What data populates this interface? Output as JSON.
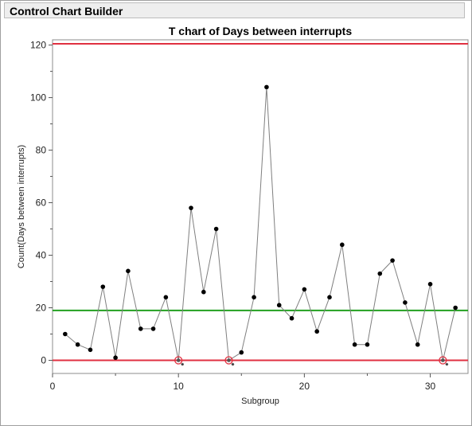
{
  "window": {
    "title": "Control Chart Builder"
  },
  "chart_data": {
    "type": "line",
    "title": "T chart of Days between interrupts",
    "xlabel": "Subgroup",
    "ylabel": "Count(Days between interrupts)",
    "xlim": [
      0,
      33
    ],
    "ylim": [
      -5,
      122
    ],
    "x_ticks": [
      0,
      10,
      20,
      30
    ],
    "y_ticks": [
      0,
      20,
      40,
      60,
      80,
      100,
      120
    ],
    "grid": false,
    "colors": {
      "series": "#7f7f7f",
      "points": "#000000",
      "ucl": "#e03040",
      "center": "#22a020",
      "lcl": "#e03040",
      "flag": "#e03040"
    },
    "series": [
      {
        "x": [
          1,
          2,
          3,
          4,
          5,
          6,
          7,
          8,
          9,
          10,
          11,
          12,
          13,
          14,
          15,
          16,
          17,
          18,
          19,
          20,
          21,
          22,
          23,
          24,
          25,
          26,
          27,
          28,
          29,
          30,
          31,
          32
        ],
        "values": [
          10,
          6,
          4,
          28,
          1,
          34,
          12,
          12,
          24,
          0,
          58,
          26,
          50,
          0,
          3,
          24,
          104,
          21,
          16,
          27,
          11,
          24,
          44,
          6,
          6,
          33,
          38,
          22,
          6,
          29,
          0,
          20
        ]
      }
    ],
    "limits": {
      "ucl": 120.5,
      "center": 19,
      "lcl": 0
    },
    "flagged_points": [
      10,
      14,
      31
    ]
  }
}
